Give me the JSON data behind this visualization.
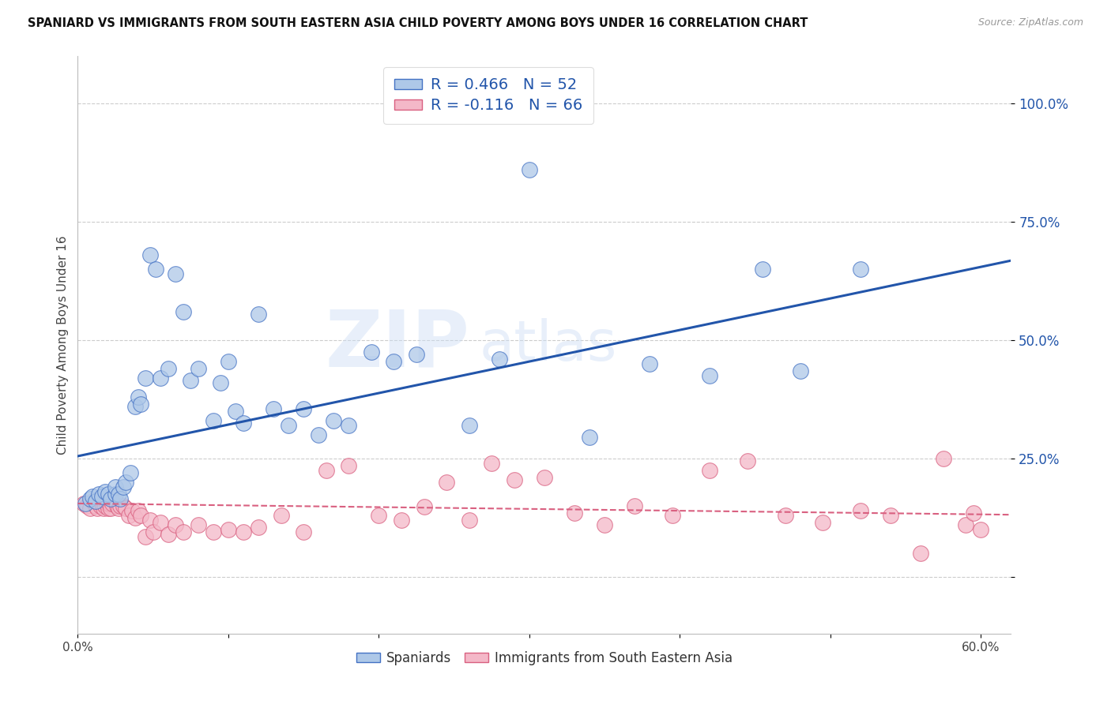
{
  "title": "SPANIARD VS IMMIGRANTS FROM SOUTH EASTERN ASIA CHILD POVERTY AMONG BOYS UNDER 16 CORRELATION CHART",
  "source": "Source: ZipAtlas.com",
  "ylabel": "Child Poverty Among Boys Under 16",
  "xlim": [
    0.0,
    0.62
  ],
  "ylim": [
    -0.12,
    1.1
  ],
  "ytick_vals": [
    0.0,
    0.25,
    0.5,
    0.75,
    1.0
  ],
  "ytick_labels": [
    "",
    "25.0%",
    "50.0%",
    "75.0%",
    "100.0%"
  ],
  "xtick_vals": [
    0.0,
    0.1,
    0.2,
    0.3,
    0.4,
    0.5,
    0.6
  ],
  "xtick_labels": [
    "0.0%",
    "",
    "",
    "",
    "",
    "",
    "60.0%"
  ],
  "blue_R": "0.466",
  "blue_N": "52",
  "pink_R": "-0.116",
  "pink_N": "66",
  "blue_color": "#aec8e8",
  "blue_edge_color": "#4472c4",
  "blue_line_color": "#2255aa",
  "pink_color": "#f4b8c8",
  "pink_edge_color": "#d96080",
  "pink_line_color": "#d96080",
  "legend_label_blue": "Spaniards",
  "legend_label_pink": "Immigrants from South Eastern Asia",
  "watermark_zip": "ZIP",
  "watermark_atlas": "atlas",
  "blue_x": [
    0.005,
    0.008,
    0.01,
    0.012,
    0.014,
    0.016,
    0.018,
    0.02,
    0.022,
    0.025,
    0.025,
    0.027,
    0.028,
    0.03,
    0.032,
    0.035,
    0.038,
    0.04,
    0.042,
    0.045,
    0.048,
    0.052,
    0.055,
    0.06,
    0.065,
    0.07,
    0.075,
    0.08,
    0.09,
    0.095,
    0.1,
    0.105,
    0.11,
    0.12,
    0.13,
    0.14,
    0.15,
    0.16,
    0.17,
    0.18,
    0.195,
    0.21,
    0.225,
    0.26,
    0.28,
    0.3,
    0.34,
    0.38,
    0.42,
    0.455,
    0.48,
    0.52
  ],
  "blue_y": [
    0.155,
    0.165,
    0.17,
    0.16,
    0.175,
    0.17,
    0.18,
    0.175,
    0.165,
    0.175,
    0.19,
    0.175,
    0.165,
    0.19,
    0.2,
    0.22,
    0.36,
    0.38,
    0.365,
    0.42,
    0.68,
    0.65,
    0.42,
    0.44,
    0.64,
    0.56,
    0.415,
    0.44,
    0.33,
    0.41,
    0.455,
    0.35,
    0.325,
    0.555,
    0.355,
    0.32,
    0.355,
    0.3,
    0.33,
    0.32,
    0.475,
    0.455,
    0.47,
    0.32,
    0.46,
    0.86,
    0.295,
    0.45,
    0.425,
    0.65,
    0.435,
    0.65
  ],
  "pink_x": [
    0.004,
    0.006,
    0.008,
    0.01,
    0.012,
    0.013,
    0.014,
    0.015,
    0.016,
    0.017,
    0.018,
    0.019,
    0.02,
    0.021,
    0.022,
    0.023,
    0.025,
    0.026,
    0.027,
    0.028,
    0.03,
    0.032,
    0.034,
    0.036,
    0.038,
    0.04,
    0.042,
    0.045,
    0.048,
    0.05,
    0.055,
    0.06,
    0.065,
    0.07,
    0.08,
    0.09,
    0.1,
    0.11,
    0.12,
    0.135,
    0.15,
    0.165,
    0.18,
    0.2,
    0.215,
    0.23,
    0.245,
    0.26,
    0.275,
    0.29,
    0.31,
    0.33,
    0.35,
    0.37,
    0.395,
    0.42,
    0.445,
    0.47,
    0.495,
    0.52,
    0.54,
    0.56,
    0.575,
    0.59,
    0.595,
    0.6
  ],
  "pink_y": [
    0.155,
    0.15,
    0.145,
    0.16,
    0.15,
    0.145,
    0.16,
    0.15,
    0.155,
    0.145,
    0.15,
    0.155,
    0.145,
    0.155,
    0.145,
    0.155,
    0.16,
    0.15,
    0.145,
    0.15,
    0.15,
    0.145,
    0.13,
    0.14,
    0.125,
    0.14,
    0.13,
    0.085,
    0.12,
    0.095,
    0.115,
    0.09,
    0.11,
    0.095,
    0.11,
    0.095,
    0.1,
    0.095,
    0.105,
    0.13,
    0.095,
    0.225,
    0.235,
    0.13,
    0.12,
    0.148,
    0.2,
    0.12,
    0.24,
    0.205,
    0.21,
    0.135,
    0.11,
    0.15,
    0.13,
    0.225,
    0.245,
    0.13,
    0.115,
    0.14,
    0.13,
    0.05,
    0.25,
    0.11,
    0.135,
    0.1
  ]
}
